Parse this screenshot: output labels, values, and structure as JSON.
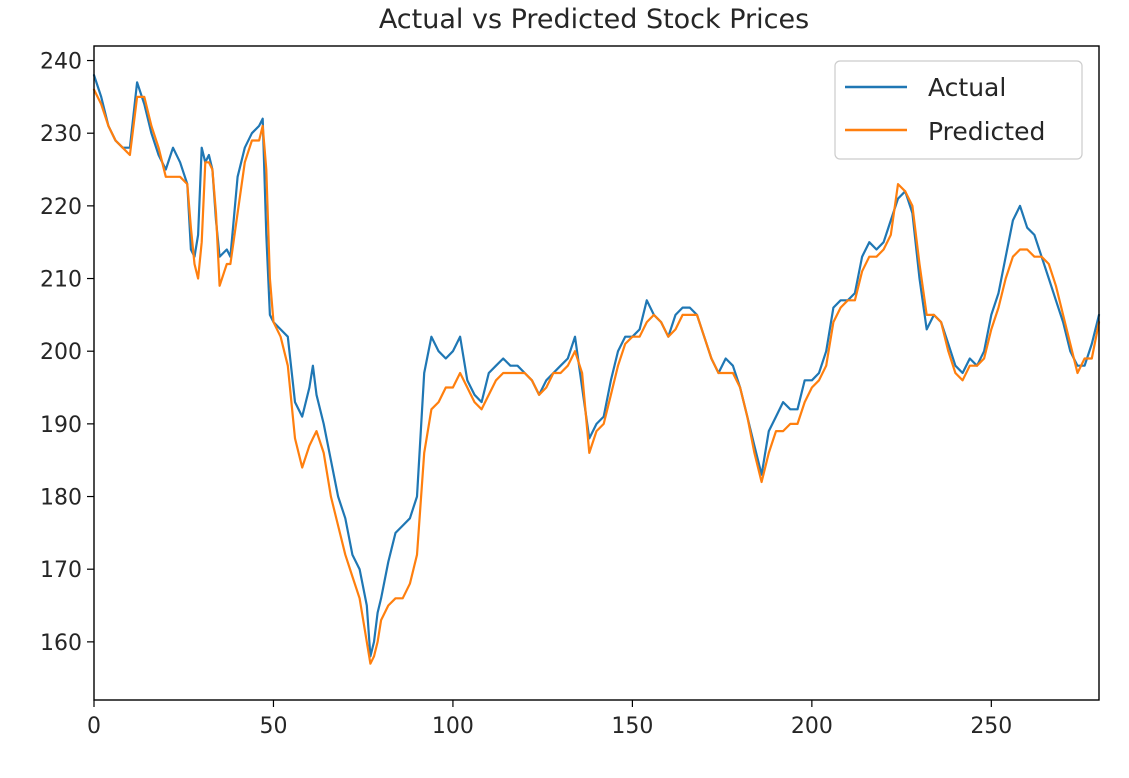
{
  "chart_data": {
    "type": "line",
    "title": "Actual vs Predicted Stock Prices",
    "xlabel": "",
    "ylabel": "",
    "xlim": [
      0,
      280
    ],
    "ylim": [
      152,
      242
    ],
    "xticks": [
      0,
      50,
      100,
      150,
      200,
      250
    ],
    "yticks": [
      160,
      170,
      180,
      190,
      200,
      210,
      220,
      230,
      240
    ],
    "grid": false,
    "legend_position": "top-right",
    "series": [
      {
        "name": "Actual",
        "color": "#1f77b4",
        "points": [
          [
            0,
            238
          ],
          [
            2,
            235
          ],
          [
            4,
            231
          ],
          [
            6,
            229
          ],
          [
            8,
            228
          ],
          [
            10,
            228
          ],
          [
            12,
            237
          ],
          [
            14,
            234
          ],
          [
            16,
            230
          ],
          [
            18,
            227
          ],
          [
            20,
            225
          ],
          [
            22,
            228
          ],
          [
            24,
            226
          ],
          [
            26,
            223
          ],
          [
            27,
            214
          ],
          [
            28,
            213
          ],
          [
            29,
            216
          ],
          [
            30,
            228
          ],
          [
            31,
            226
          ],
          [
            32,
            227
          ],
          [
            33,
            225
          ],
          [
            34,
            218
          ],
          [
            35,
            213
          ],
          [
            37,
            214
          ],
          [
            38,
            213
          ],
          [
            40,
            224
          ],
          [
            42,
            228
          ],
          [
            44,
            230
          ],
          [
            46,
            231
          ],
          [
            47,
            232
          ],
          [
            48,
            216
          ],
          [
            49,
            205
          ],
          [
            50,
            204
          ],
          [
            52,
            203
          ],
          [
            54,
            202
          ],
          [
            56,
            193
          ],
          [
            58,
            191
          ],
          [
            60,
            195
          ],
          [
            61,
            198
          ],
          [
            62,
            194
          ],
          [
            64,
            190
          ],
          [
            66,
            185
          ],
          [
            68,
            180
          ],
          [
            70,
            177
          ],
          [
            72,
            172
          ],
          [
            74,
            170
          ],
          [
            76,
            165
          ],
          [
            77,
            158
          ],
          [
            78,
            160
          ],
          [
            79,
            164
          ],
          [
            80,
            166
          ],
          [
            82,
            171
          ],
          [
            84,
            175
          ],
          [
            86,
            176
          ],
          [
            88,
            177
          ],
          [
            90,
            180
          ],
          [
            92,
            197
          ],
          [
            94,
            202
          ],
          [
            96,
            200
          ],
          [
            98,
            199
          ],
          [
            100,
            200
          ],
          [
            102,
            202
          ],
          [
            104,
            196
          ],
          [
            106,
            194
          ],
          [
            108,
            193
          ],
          [
            110,
            197
          ],
          [
            112,
            198
          ],
          [
            114,
            199
          ],
          [
            116,
            198
          ],
          [
            118,
            198
          ],
          [
            120,
            197
          ],
          [
            122,
            196
          ],
          [
            124,
            194
          ],
          [
            126,
            196
          ],
          [
            128,
            197
          ],
          [
            130,
            198
          ],
          [
            132,
            199
          ],
          [
            134,
            202
          ],
          [
            136,
            195
          ],
          [
            138,
            188
          ],
          [
            140,
            190
          ],
          [
            142,
            191
          ],
          [
            144,
            196
          ],
          [
            146,
            200
          ],
          [
            148,
            202
          ],
          [
            150,
            202
          ],
          [
            152,
            203
          ],
          [
            154,
            207
          ],
          [
            156,
            205
          ],
          [
            158,
            204
          ],
          [
            160,
            202
          ],
          [
            162,
            205
          ],
          [
            164,
            206
          ],
          [
            166,
            206
          ],
          [
            168,
            205
          ],
          [
            170,
            202
          ],
          [
            172,
            199
          ],
          [
            174,
            197
          ],
          [
            176,
            199
          ],
          [
            178,
            198
          ],
          [
            180,
            195
          ],
          [
            182,
            191
          ],
          [
            184,
            187
          ],
          [
            186,
            183
          ],
          [
            188,
            189
          ],
          [
            190,
            191
          ],
          [
            192,
            193
          ],
          [
            194,
            192
          ],
          [
            196,
            192
          ],
          [
            198,
            196
          ],
          [
            200,
            196
          ],
          [
            202,
            197
          ],
          [
            204,
            200
          ],
          [
            206,
            206
          ],
          [
            208,
            207
          ],
          [
            210,
            207
          ],
          [
            212,
            208
          ],
          [
            214,
            213
          ],
          [
            216,
            215
          ],
          [
            218,
            214
          ],
          [
            220,
            215
          ],
          [
            222,
            218
          ],
          [
            224,
            221
          ],
          [
            226,
            222
          ],
          [
            228,
            219
          ],
          [
            230,
            210
          ],
          [
            232,
            203
          ],
          [
            234,
            205
          ],
          [
            236,
            204
          ],
          [
            238,
            201
          ],
          [
            240,
            198
          ],
          [
            242,
            197
          ],
          [
            244,
            199
          ],
          [
            246,
            198
          ],
          [
            248,
            200
          ],
          [
            250,
            205
          ],
          [
            252,
            208
          ],
          [
            254,
            213
          ],
          [
            256,
            218
          ],
          [
            258,
            220
          ],
          [
            260,
            217
          ],
          [
            262,
            216
          ],
          [
            264,
            213
          ],
          [
            266,
            210
          ],
          [
            268,
            207
          ],
          [
            270,
            204
          ],
          [
            272,
            200
          ],
          [
            274,
            198
          ],
          [
            276,
            198
          ],
          [
            278,
            201
          ],
          [
            280,
            205
          ]
        ]
      },
      {
        "name": "Predicted",
        "color": "#ff7f0e",
        "points": [
          [
            0,
            236
          ],
          [
            2,
            234
          ],
          [
            4,
            231
          ],
          [
            6,
            229
          ],
          [
            8,
            228
          ],
          [
            10,
            227
          ],
          [
            12,
            235
          ],
          [
            14,
            235
          ],
          [
            16,
            231
          ],
          [
            18,
            228
          ],
          [
            20,
            224
          ],
          [
            22,
            224
          ],
          [
            24,
            224
          ],
          [
            26,
            223
          ],
          [
            27,
            217
          ],
          [
            28,
            212
          ],
          [
            29,
            210
          ],
          [
            30,
            215
          ],
          [
            31,
            226
          ],
          [
            32,
            226
          ],
          [
            33,
            225
          ],
          [
            34,
            219
          ],
          [
            35,
            209
          ],
          [
            37,
            212
          ],
          [
            38,
            212
          ],
          [
            40,
            219
          ],
          [
            42,
            226
          ],
          [
            44,
            229
          ],
          [
            46,
            229
          ],
          [
            47,
            231
          ],
          [
            48,
            225
          ],
          [
            49,
            210
          ],
          [
            50,
            204
          ],
          [
            52,
            202
          ],
          [
            54,
            198
          ],
          [
            56,
            188
          ],
          [
            58,
            184
          ],
          [
            60,
            187
          ],
          [
            61,
            188
          ],
          [
            62,
            189
          ],
          [
            64,
            186
          ],
          [
            66,
            180
          ],
          [
            68,
            176
          ],
          [
            70,
            172
          ],
          [
            72,
            169
          ],
          [
            74,
            166
          ],
          [
            76,
            160
          ],
          [
            77,
            157
          ],
          [
            78,
            158
          ],
          [
            79,
            160
          ],
          [
            80,
            163
          ],
          [
            82,
            165
          ],
          [
            84,
            166
          ],
          [
            86,
            166
          ],
          [
            88,
            168
          ],
          [
            90,
            172
          ],
          [
            92,
            186
          ],
          [
            94,
            192
          ],
          [
            96,
            193
          ],
          [
            98,
            195
          ],
          [
            100,
            195
          ],
          [
            102,
            197
          ],
          [
            104,
            195
          ],
          [
            106,
            193
          ],
          [
            108,
            192
          ],
          [
            110,
            194
          ],
          [
            112,
            196
          ],
          [
            114,
            197
          ],
          [
            116,
            197
          ],
          [
            118,
            197
          ],
          [
            120,
            197
          ],
          [
            122,
            196
          ],
          [
            124,
            194
          ],
          [
            126,
            195
          ],
          [
            128,
            197
          ],
          [
            130,
            197
          ],
          [
            132,
            198
          ],
          [
            134,
            200
          ],
          [
            136,
            197
          ],
          [
            138,
            186
          ],
          [
            140,
            189
          ],
          [
            142,
            190
          ],
          [
            144,
            194
          ],
          [
            146,
            198
          ],
          [
            148,
            201
          ],
          [
            150,
            202
          ],
          [
            152,
            202
          ],
          [
            154,
            204
          ],
          [
            156,
            205
          ],
          [
            158,
            204
          ],
          [
            160,
            202
          ],
          [
            162,
            203
          ],
          [
            164,
            205
          ],
          [
            166,
            205
          ],
          [
            168,
            205
          ],
          [
            170,
            202
          ],
          [
            172,
            199
          ],
          [
            174,
            197
          ],
          [
            176,
            197
          ],
          [
            178,
            197
          ],
          [
            180,
            195
          ],
          [
            182,
            191
          ],
          [
            184,
            186
          ],
          [
            186,
            182
          ],
          [
            188,
            186
          ],
          [
            190,
            189
          ],
          [
            192,
            189
          ],
          [
            194,
            190
          ],
          [
            196,
            190
          ],
          [
            198,
            193
          ],
          [
            200,
            195
          ],
          [
            202,
            196
          ],
          [
            204,
            198
          ],
          [
            206,
            204
          ],
          [
            208,
            206
          ],
          [
            210,
            207
          ],
          [
            212,
            207
          ],
          [
            214,
            211
          ],
          [
            216,
            213
          ],
          [
            218,
            213
          ],
          [
            220,
            214
          ],
          [
            222,
            216
          ],
          [
            224,
            223
          ],
          [
            226,
            222
          ],
          [
            228,
            220
          ],
          [
            230,
            212
          ],
          [
            232,
            205
          ],
          [
            234,
            205
          ],
          [
            236,
            204
          ],
          [
            238,
            200
          ],
          [
            240,
            197
          ],
          [
            242,
            196
          ],
          [
            244,
            198
          ],
          [
            246,
            198
          ],
          [
            248,
            199
          ],
          [
            250,
            203
          ],
          [
            252,
            206
          ],
          [
            254,
            210
          ],
          [
            256,
            213
          ],
          [
            258,
            214
          ],
          [
            260,
            214
          ],
          [
            262,
            213
          ],
          [
            264,
            213
          ],
          [
            266,
            212
          ],
          [
            268,
            209
          ],
          [
            270,
            205
          ],
          [
            272,
            201
          ],
          [
            274,
            197
          ],
          [
            276,
            199
          ],
          [
            278,
            199
          ],
          [
            280,
            204
          ]
        ]
      }
    ]
  }
}
